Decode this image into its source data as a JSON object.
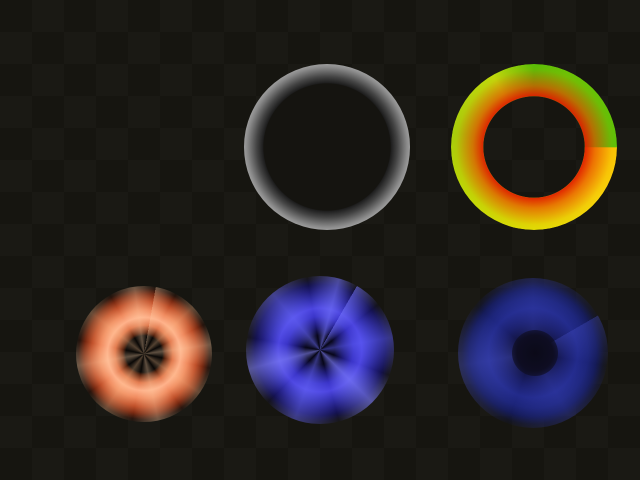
{
  "scene": {
    "background": {
      "style": "dark checkerboard",
      "color_a": "#161510",
      "color_b": "#1a1914"
    },
    "rings": [
      {
        "name": "grayscale-ring",
        "colors": [
          "#151410",
          "#ffffff"
        ]
      },
      {
        "name": "gradient-ring",
        "colors": [
          "#e01e00",
          "#ffd605",
          "#dff106",
          "#38ce08"
        ]
      },
      {
        "name": "orange-glow-ring",
        "colors": [
          "#ffb18a",
          "#e27a4e",
          "#7a2a12"
        ]
      },
      {
        "name": "blue-glow-ring",
        "colors": [
          "#4c45e0",
          "#3431b0",
          "#141250"
        ]
      },
      {
        "name": "faint-blue-glow-ring",
        "colors": [
          "#222a8a",
          "#1c2478",
          "#151b58"
        ]
      }
    ]
  }
}
